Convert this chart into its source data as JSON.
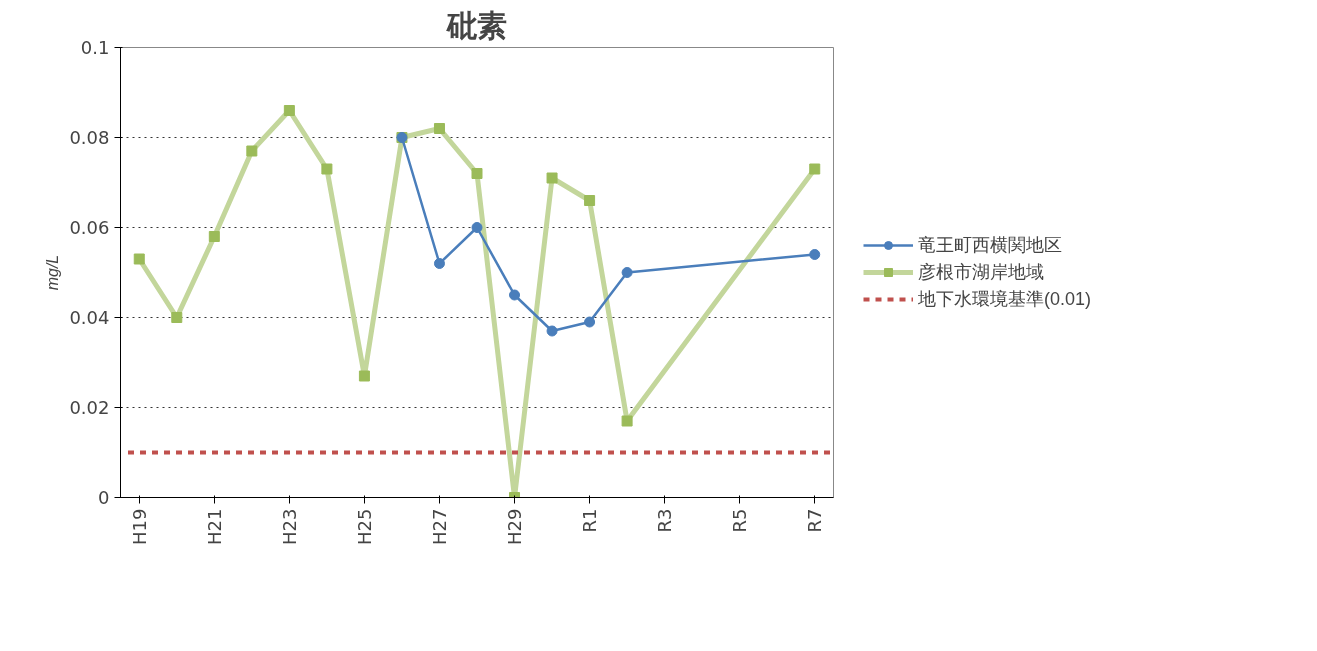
{
  "chart_data": {
    "type": "line",
    "title": "砒素",
    "ylabel": "mg/L",
    "categories": [
      "H19",
      null,
      "H21",
      null,
      "H23",
      null,
      "H25",
      null,
      "H27",
      null,
      "H29",
      null,
      "R1",
      null,
      "R3",
      null,
      "R5",
      null,
      "R7"
    ],
    "series": [
      {
        "name": "竜王町西横関地区",
        "color": "#4a7ebb",
        "marker": "circle",
        "values": [
          null,
          null,
          null,
          null,
          null,
          null,
          null,
          0.08,
          0.052,
          0.06,
          0.045,
          0.037,
          0.039,
          0.05,
          null,
          null,
          null,
          null,
          0.054
        ]
      },
      {
        "name": "彦根市湖岸地域",
        "color": "#9bbb59",
        "marker": "square",
        "values": [
          0.053,
          0.04,
          0.058,
          0.077,
          0.086,
          0.073,
          0.027,
          0.08,
          0.082,
          0.072,
          0.0,
          0.071,
          0.066,
          0.017,
          null,
          null,
          null,
          null,
          0.073
        ]
      }
    ],
    "ref_lines": [
      {
        "axis": "y",
        "value": 0.01,
        "label": "地下水環境基準(0.01)",
        "color": "#c0504d",
        "line_style": "dashed"
      }
    ],
    "ylim": [
      0,
      0.1
    ],
    "yticks": [
      0,
      0.02,
      0.04,
      0.06,
      0.08,
      0.1
    ],
    "grid": "y",
    "legend": "right"
  }
}
